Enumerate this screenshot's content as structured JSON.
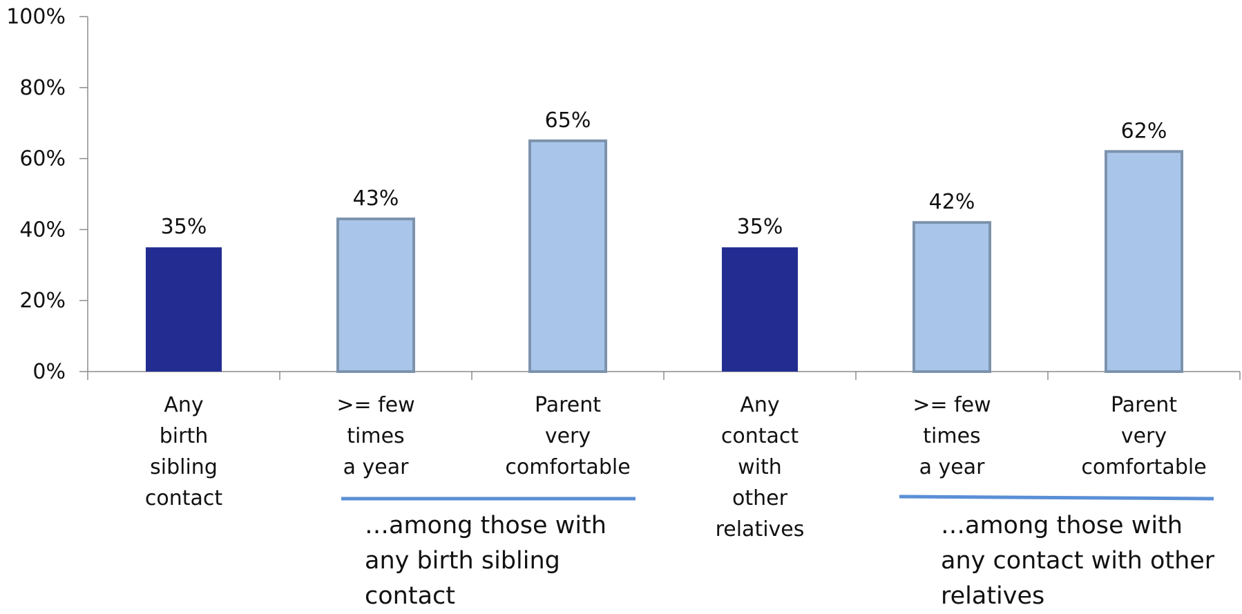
{
  "chart_data": {
    "type": "bar",
    "title": "",
    "xlabel": "",
    "ylabel": "",
    "ylim": [
      0,
      100
    ],
    "yticks": [
      "0%",
      "20%",
      "40%",
      "60%",
      "80%",
      "100%"
    ],
    "yticks_values": [
      0,
      20,
      40,
      60,
      80,
      100
    ],
    "categories": [
      "Any\nbirth\nsibling\ncontact",
      ">= few\ntimes\na year",
      "Parent\nvery\ncomfortable",
      "Any\ncontact\nwith\nother\nrelatives",
      ">= few\ntimes\na year",
      "Parent\nvery\ncomfortable"
    ],
    "values": [
      35,
      43,
      65,
      35,
      42,
      62
    ],
    "data_labels": [
      "35%",
      "43%",
      "65%",
      "35%",
      "42%",
      "62%"
    ],
    "bar_styles": [
      "dark",
      "light",
      "light",
      "dark",
      "light",
      "light"
    ],
    "colors": {
      "dark_fill": "#232d91",
      "light_fill": "#a9c6ea",
      "light_stroke": "#7d93ad",
      "axis": "#8c8c8c",
      "underline": "#5a8fd6"
    },
    "grid": false,
    "legend": "none",
    "annotations": [
      "…among those with\nany birth sibling\ncontact",
      "…among those with\nany contact with  other\nrelatives"
    ]
  }
}
